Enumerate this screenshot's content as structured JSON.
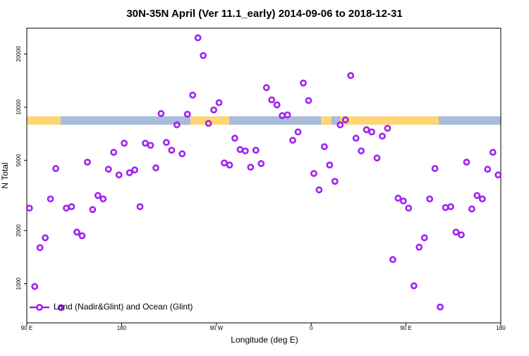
{
  "chart_data": {
    "type": "scatter",
    "title": "30N-35N April (Ver 11.1_early)   2014-09-06 to 2018-12-31",
    "x_label": "Longitude (deg E)",
    "y_label": "N Total",
    "log_scale": true,
    "legend": "bottom-left",
    "xlim": [
      90,
      540
    ],
    "xticks": [
      {
        "value": 90,
        "label": "90 E"
      },
      {
        "value": 180,
        "label": "180"
      },
      {
        "value": 270,
        "label": "90 W"
      },
      {
        "value": 360,
        "label": "0"
      },
      {
        "value": 450,
        "label": "90 E"
      },
      {
        "value": 540,
        "label": "180"
      }
    ],
    "ylim": [
      600,
      28000
    ],
    "yticks": [
      1000,
      2000,
      5000,
      10000,
      20000
    ],
    "x": [
      92.5,
      97.5,
      102.5,
      107.5,
      112.5,
      117.5,
      122.5,
      127.5,
      132.5,
      137.5,
      142.5,
      147.5,
      152.5,
      157.5,
      162.5,
      167.5,
      172.5,
      177.5,
      182.5,
      187.5,
      192.5,
      197.5,
      202.5,
      207.5,
      212.5,
      217.5,
      222.5,
      227.5,
      232.5,
      237.5,
      242.5,
      247.5,
      252.5,
      257.5,
      262.5,
      267.5,
      272.5,
      277.5,
      282.5,
      287.5,
      292.5,
      297.5,
      302.5,
      307.5,
      312.5,
      317.5,
      322.5,
      327.5,
      332.5,
      337.5,
      342.5,
      347.5,
      352.5,
      357.5,
      362.5,
      367.5,
      372.5,
      377.5,
      382.5,
      387.5,
      392.5,
      397.5,
      402.5,
      407.5,
      412.5,
      417.5,
      422.5,
      427.5,
      432.5,
      437.5,
      442.5,
      447.5,
      452.5,
      457.5,
      462.5,
      467.5,
      472.5,
      477.5,
      482.5,
      487.5,
      492.5,
      497.5,
      502.5,
      507.5,
      512.5,
      517.5,
      522.5,
      527.5,
      532.5,
      537.5
    ],
    "series": [
      {
        "name": "Land (Nadir&Glint) and Ocean (Glint)",
        "color": "#a020f0",
        "values": [
          2680,
          964,
          1600,
          1820,
          3020,
          4490,
          731,
          2680,
          2730,
          1960,
          1870,
          4880,
          2630,
          3160,
          3020,
          4450,
          5550,
          4130,
          6250,
          4250,
          4410,
          2730,
          6250,
          6080,
          4530,
          9200,
          6310,
          5700,
          7940,
          5440,
          9120,
          11700,
          24700,
          19600,
          8090,
          9640,
          10600,
          4830,
          4700,
          6670,
          5750,
          5650,
          4570,
          5700,
          4790,
          12900,
          11000,
          10300,
          8950,
          9040,
          6490,
          7240,
          13700,
          10900,
          4210,
          3400,
          5970,
          4700,
          3800,
          7940,
          8470,
          15100,
          6670,
          5650,
          7450,
          7240,
          5150,
          6850,
          7590,
          1370,
          3050,
          2940,
          2680,
          973,
          1610,
          1820,
          3020,
          4490,
          738,
          2700,
          2730,
          1960,
          1890,
          4880,
          2650,
          3160,
          3020,
          4450,
          5550,
          4130
        ]
      }
    ]
  }
}
